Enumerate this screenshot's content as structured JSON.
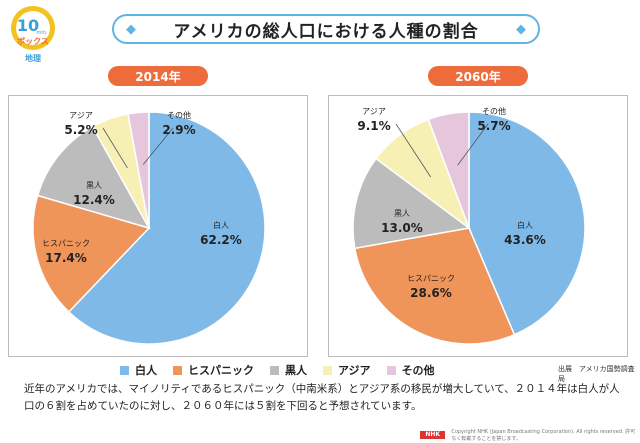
{
  "logo": {
    "number": "10",
    "line1": "min.",
    "line2": "ボックス",
    "line3": "地理"
  },
  "title": "アメリカの総人口における人種の割合",
  "colors": {
    "white": "#7fb9e8",
    "hispanic": "#f0955a",
    "black": "#bcbcbc",
    "asian": "#f7f0b5",
    "other": "#e5c6dc",
    "badge": "#ee6b3b",
    "title_border": "#5fb4e6"
  },
  "legend": [
    {
      "label": "白人",
      "color_key": "white"
    },
    {
      "label": "ヒスパニック",
      "color_key": "hispanic"
    },
    {
      "label": "黒人",
      "color_key": "black"
    },
    {
      "label": "アジア",
      "color_key": "asian"
    },
    {
      "label": "その他",
      "color_key": "other"
    }
  ],
  "source": "出展　アメリカ国勢調査局",
  "caption": "近年のアメリカでは、マイノリティであるヒスパニック（中南米系）とアジア系の移民が増大していて、２０１４年は白人が人口の６割を占めていたのに対し、２０６０年には５割を下回ると予想されています。",
  "footer": {
    "brand": "NHK",
    "text": "Copyright NHK (Japan Broadcasting Corporation). All rights reserved. 許可なく転載することを禁じます。"
  },
  "chart_data": [
    {
      "type": "pie",
      "title": "2014年",
      "categories": [
        "白人",
        "ヒスパニック",
        "黒人",
        "アジア",
        "その他"
      ],
      "values": [
        62.2,
        17.4,
        12.4,
        5.2,
        2.9
      ],
      "labels": [
        "62.2%",
        "17.4%",
        "12.4%",
        "5.2%",
        "2.9%"
      ]
    },
    {
      "type": "pie",
      "title": "2060年",
      "categories": [
        "白人",
        "ヒスパニック",
        "黒人",
        "アジア",
        "その他"
      ],
      "values": [
        43.6,
        28.6,
        13.0,
        9.1,
        5.7
      ],
      "labels": [
        "43.6%",
        "28.6%",
        "13.0%",
        "9.1%",
        "5.7%"
      ]
    }
  ]
}
